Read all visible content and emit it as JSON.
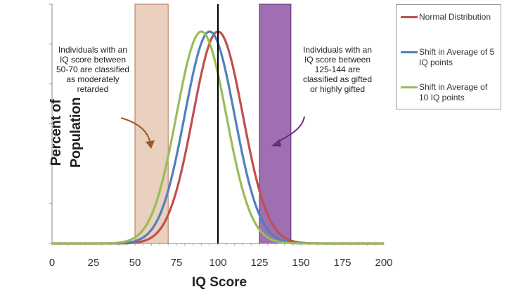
{
  "chart_data": {
    "type": "line",
    "xlabel": "IQ Score",
    "ylabel": "Percent of Population",
    "xlim": [
      0,
      200
    ],
    "x_ticks": [
      "0",
      "25",
      "50",
      "75",
      "100",
      "125",
      "150",
      "175",
      "200"
    ],
    "grid": false,
    "legend_position": "top-right",
    "series": [
      {
        "name": "Normal Distribution",
        "mean": 100,
        "sd": 15,
        "color": "#c0504d"
      },
      {
        "name": "Shift in Average of 5 IQ points",
        "mean": 95,
        "sd": 15,
        "color": "#4f81bd"
      },
      {
        "name": "Shift in Average of 10 IQ points",
        "mean": 90,
        "sd": 15,
        "color": "#9bbb59"
      }
    ],
    "bands": [
      {
        "x_from": 50,
        "x_to": 70,
        "color": "#d9a98a"
      },
      {
        "x_from": 125,
        "x_to": 144,
        "color": "#7f3f98"
      }
    ],
    "reference_line_x": 100,
    "annotations": [
      {
        "text": "Individuals with an IQ score between 50-70 are classified as moderately retarded"
      },
      {
        "text": "Individuals with an IQ score between 125-144 are classified as gifted or highly gifted"
      }
    ]
  },
  "legend": {
    "items": [
      {
        "label": "Normal Distribution",
        "color": "#c0504d"
      },
      {
        "label": "Shift in Average of 5 IQ points",
        "color": "#4f81bd"
      },
      {
        "label": "Shift in Average of 10 IQ points",
        "color": "#9bbb59"
      }
    ]
  },
  "annotation_left": "Individuals with an IQ score between 50-70 are classified as moderately retarded",
  "annotation_right": "Individuals with an IQ score between 125-144 are classified as gifted or highly gifted"
}
